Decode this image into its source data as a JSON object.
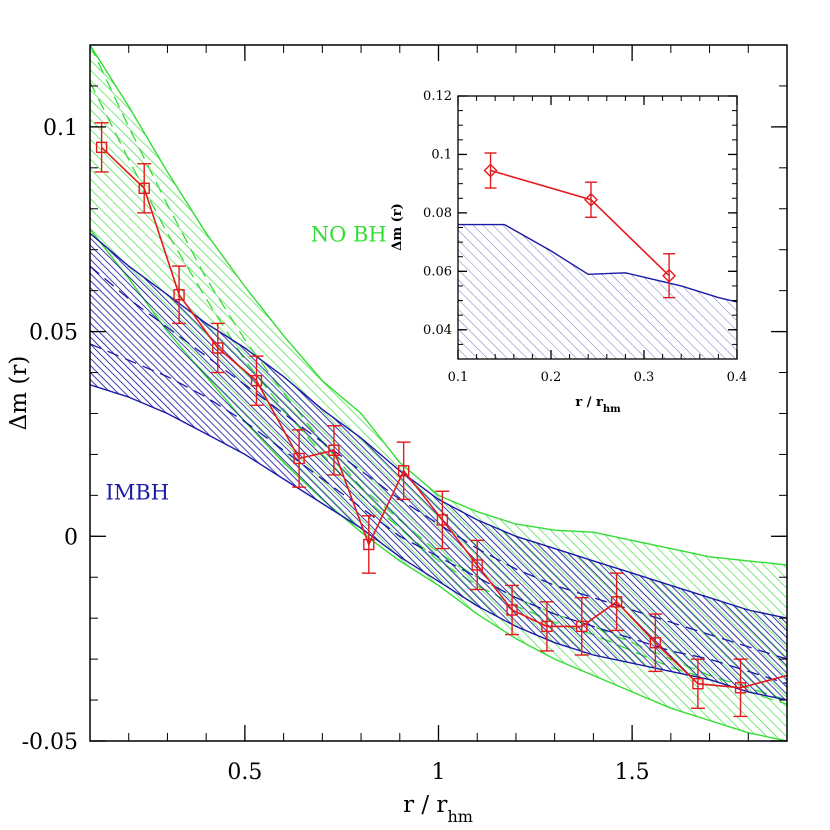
{
  "chart_data": [
    {
      "type": "line",
      "xlabel": "r / r",
      "xlabel_sub": "hm",
      "ylabel": "Δm (r)",
      "xlim": [
        0.1,
        1.9
      ],
      "ylim": [
        -0.05,
        0.12
      ],
      "x_ticks": [
        0.5,
        1,
        1.5
      ],
      "x_tick_labels": [
        "0.5",
        "1",
        "1.5"
      ],
      "y_ticks": [
        -0.05,
        0,
        0.05,
        0.1
      ],
      "y_tick_labels": [
        "-0.05",
        "0",
        "0.05",
        "0.1"
      ],
      "grid": false,
      "legend": "none",
      "colors": {
        "data": "#e41a1c",
        "nobh": "#33dd33",
        "imbh": "#1a1aa8"
      },
      "annotations": [
        {
          "text": "NO BH",
          "x": 0.67,
          "y": 0.072,
          "color": "#33dd33"
        },
        {
          "text": "IMBH",
          "x": 0.14,
          "y": 0.009,
          "color": "#1a1aa8"
        }
      ],
      "bands": [
        {
          "name": "NO BH",
          "color": "#33dd33",
          "x": [
            0.1,
            0.2,
            0.3,
            0.4,
            0.5,
            0.6,
            0.7,
            0.8,
            0.9,
            1.0,
            1.1,
            1.2,
            1.3,
            1.4,
            1.5,
            1.6,
            1.7,
            1.8,
            1.9
          ],
          "upper": [
            0.12,
            0.105,
            0.089,
            0.074,
            0.061,
            0.049,
            0.038,
            0.03,
            0.018,
            0.01,
            0.006,
            0.003,
            0.0015,
            0.001,
            -0.001,
            -0.003,
            -0.005,
            -0.006,
            -0.007
          ],
          "lower": [
            0.075,
            0.063,
            0.05,
            0.039,
            0.028,
            0.018,
            0.009,
            0.001,
            -0.006,
            -0.012,
            -0.019,
            -0.025,
            -0.03,
            -0.034,
            -0.038,
            -0.042,
            -0.045,
            -0.048,
            -0.05
          ],
          "dashed": [
            [
              0.12,
              0.1,
              0.081,
              0.063,
              0.048,
              0.035,
              0.023,
              0.012,
              0.004,
              -0.004,
              -0.01,
              -0.015,
              -0.019,
              -0.022,
              -0.026,
              -0.03,
              -0.034,
              -0.037,
              -0.04
            ],
            [
              0.111,
              0.092,
              0.074,
              0.058,
              0.043,
              0.031,
              0.02,
              0.01,
              0.002,
              -0.006,
              -0.012,
              -0.017,
              -0.021,
              -0.024,
              -0.028,
              -0.032,
              -0.035,
              -0.038,
              -0.041
            ]
          ]
        },
        {
          "name": "IMBH",
          "color": "#1a1aa8",
          "x": [
            0.1,
            0.2,
            0.3,
            0.4,
            0.5,
            0.6,
            0.7,
            0.8,
            0.9,
            1.0,
            1.1,
            1.2,
            1.3,
            1.4,
            1.5,
            1.6,
            1.7,
            1.8,
            1.9
          ],
          "upper": [
            0.074,
            0.066,
            0.059,
            0.052,
            0.046,
            0.039,
            0.031,
            0.024,
            0.016,
            0.009,
            0.004,
            0.0,
            -0.003,
            -0.006,
            -0.009,
            -0.012,
            -0.015,
            -0.018,
            -0.02
          ],
          "lower": [
            0.037,
            0.034,
            0.03,
            0.025,
            0.02,
            0.014,
            0.008,
            0.002,
            -0.005,
            -0.011,
            -0.017,
            -0.022,
            -0.026,
            -0.029,
            -0.031,
            -0.033,
            -0.035,
            -0.038,
            -0.04
          ],
          "dashed": [
            [
              0.066,
              0.058,
              0.051,
              0.044,
              0.037,
              0.03,
              0.023,
              0.016,
              0.009,
              0.003,
              -0.003,
              -0.008,
              -0.012,
              -0.015,
              -0.018,
              -0.021,
              -0.024,
              -0.027,
              -0.03
            ],
            [
              0.047,
              0.043,
              0.039,
              0.034,
              0.028,
              0.021,
              0.014,
              0.007,
              0.0,
              -0.005,
              -0.01,
              -0.015,
              -0.019,
              -0.022,
              -0.025,
              -0.028,
              -0.03,
              -0.033,
              -0.036
            ]
          ]
        }
      ],
      "series": [
        {
          "color": "#e41a1c",
          "marker": "square",
          "x": [
            0.13,
            0.24,
            0.33,
            0.43,
            0.53,
            0.64,
            0.73,
            0.82,
            0.91,
            1.01,
            1.1,
            1.19,
            1.28,
            1.37,
            1.46,
            1.56,
            1.67,
            1.78,
            1.9
          ],
          "y": [
            0.095,
            0.085,
            0.059,
            0.046,
            0.038,
            0.019,
            0.021,
            -0.002,
            0.016,
            0.004,
            -0.007,
            -0.018,
            -0.022,
            -0.022,
            -0.016,
            -0.026,
            -0.036,
            -0.037,
            -0.034
          ],
          "yerr": [
            0.006,
            0.006,
            0.007,
            0.006,
            0.006,
            0.007,
            0.006,
            0.007,
            0.007,
            0.007,
            0.006,
            0.006,
            0.006,
            0.007,
            0.007,
            0.007,
            0.006,
            0.007,
            null
          ]
        }
      ]
    },
    {
      "type": "line",
      "role": "inset",
      "xlabel": "r / r",
      "xlabel_sub": "hm",
      "ylabel": "Δm (r)",
      "xlim": [
        0.1,
        0.4
      ],
      "ylim": [
        0.03,
        0.12
      ],
      "x_ticks": [
        0.1,
        0.2,
        0.3,
        0.4
      ],
      "x_tick_labels": [
        "0.1",
        "0.2",
        "0.3",
        "0.4"
      ],
      "y_ticks": [
        0.04,
        0.06,
        0.08,
        0.1,
        0.12
      ],
      "y_tick_labels": [
        "0.04",
        "0.06",
        "0.08",
        "0.1",
        "0.12"
      ],
      "grid": false,
      "legend": "none",
      "bands": [
        {
          "color": "#1a1aa8",
          "x": [
            0.1,
            0.15,
            0.2,
            0.24,
            0.28,
            0.3,
            0.34,
            0.38,
            0.4
          ],
          "upper": [
            0.076,
            0.076,
            0.067,
            0.059,
            0.0595,
            0.058,
            0.055,
            0.051,
            0.0495
          ]
        }
      ],
      "series": [
        {
          "color": "#e41a1c",
          "marker": "diamond",
          "x": [
            0.135,
            0.243,
            0.327
          ],
          "y": [
            0.0945,
            0.0845,
            0.0585
          ],
          "yerr": [
            0.006,
            0.006,
            0.0075
          ]
        }
      ]
    }
  ]
}
